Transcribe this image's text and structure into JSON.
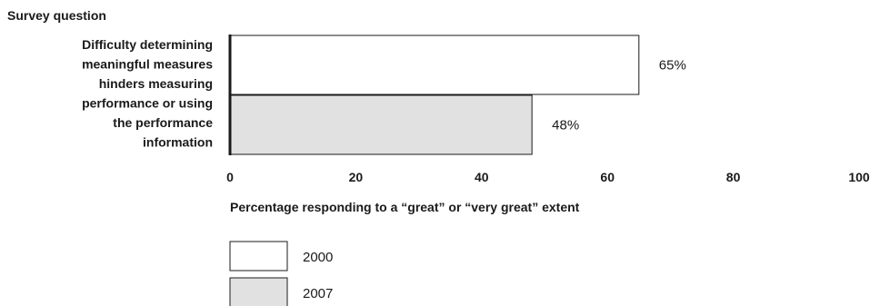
{
  "header": {
    "label": "Survey question"
  },
  "chart_data": {
    "type": "bar",
    "orientation": "horizontal",
    "categories": [
      "Difficulty determining meaningful measures hinders measuring performance or using the performance information"
    ],
    "category_lines": [
      "Difficulty determining",
      "meaningful measures",
      "hinders measuring",
      "performance or using",
      "the performance",
      "information"
    ],
    "series": [
      {
        "name": "2000",
        "values": [
          65
        ],
        "value_labels": [
          "65%"
        ],
        "color": "#ffffff"
      },
      {
        "name": "2007",
        "values": [
          48
        ],
        "value_labels": [
          "48%"
        ],
        "color": "#e1e1e1"
      }
    ],
    "xlim": [
      0,
      100
    ],
    "xticks": [
      0,
      20,
      40,
      60,
      80,
      100
    ],
    "xtick_labels": [
      "0",
      "20",
      "40",
      "60",
      "80",
      "100"
    ],
    "xlabel": "Percentage responding to a “great” or “very great” extent",
    "ylabel": "Survey question",
    "grid": false,
    "legend_position": "bottom-left"
  }
}
